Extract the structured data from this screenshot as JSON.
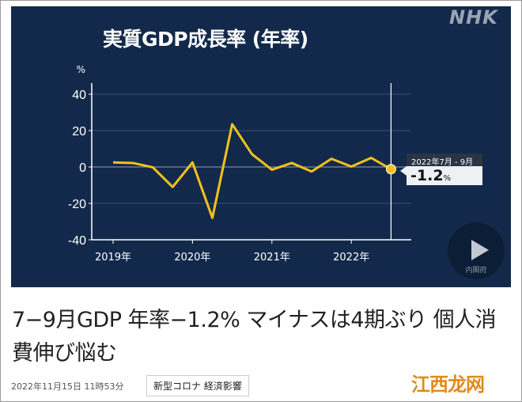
{
  "chart_data": {
    "type": "line",
    "title": "実質GDP成長率 (年率)",
    "ylabel": "%",
    "ylim": [
      -40,
      40
    ],
    "yticks": [
      40,
      20,
      0,
      -20,
      -40
    ],
    "xtick_labels": [
      "2019年",
      "2020年",
      "2021年",
      "2022年"
    ],
    "grid": true,
    "x": [
      "2019Q1",
      "2019Q2",
      "2019Q3",
      "2019Q4",
      "2020Q1",
      "2020Q2",
      "2020Q3",
      "2020Q4",
      "2021Q1",
      "2021Q2",
      "2021Q3",
      "2021Q4",
      "2022Q1",
      "2022Q2",
      "2022Q3"
    ],
    "values": [
      2.5,
      2.2,
      -0.2,
      -11,
      2.5,
      -28,
      23.5,
      7,
      -1.5,
      2.2,
      -2.5,
      4.5,
      0.2,
      5,
      -1.2
    ],
    "line_color": "#f2c21b",
    "annotation": {
      "period": "2022年7月 - 9月",
      "value": "-1.2",
      "unit": "%"
    }
  },
  "brand": "NHK",
  "play_button": {
    "label": "内閣府"
  },
  "article": {
    "headline": "7−9月GDP 年率−1.2% マイナスは4期ぶり 個人消費伸び悩む",
    "timestamp": "2022年11月15日 11時53分",
    "tag": "新型コロナ 経済影響"
  },
  "watermark": "江西龙网"
}
